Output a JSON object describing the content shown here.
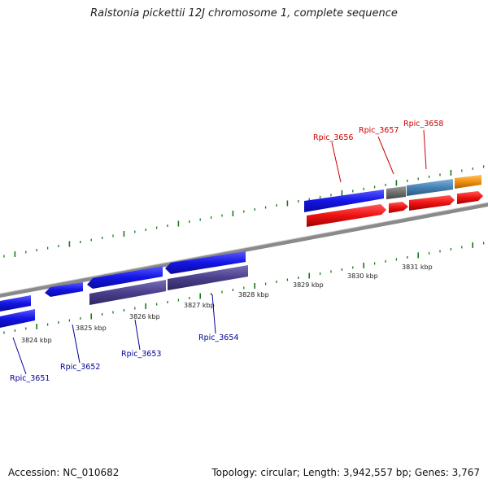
{
  "title": "Ralstonia pickettii 12J chromosome 1, complete sequence",
  "footer": {
    "accession": "Accession: NC_010682",
    "summary": "Topology: circular; Length: 3,942,557 bp; Genes: 3,767"
  },
  "colors": {
    "backbone": "#8a8a8a",
    "tick": "#1a7a1a",
    "forward_label": "#cc0000",
    "reverse_label": "#000099",
    "gene_blue": "#1414e6",
    "gene_red": "#ee1111",
    "gene_purple": "#4a3f8c",
    "gene_steelblue": "#4682b4",
    "gene_gray": "#6e6e6e",
    "gene_orange": "#f09010"
  },
  "scale": {
    "labels": [
      "3824 kbp",
      "3825 kbp",
      "3826 kbp",
      "3827 kbp",
      "3828 kbp",
      "3829 kbp",
      "3830 kbp",
      "3831 kbp"
    ]
  },
  "forward_labels": [
    "Rpic_3656",
    "Rpic_3657",
    "Rpic_3658"
  ],
  "reverse_labels": [
    "Rpic_3651",
    "Rpic_3652",
    "Rpic_3653",
    "Rpic_3654"
  ]
}
